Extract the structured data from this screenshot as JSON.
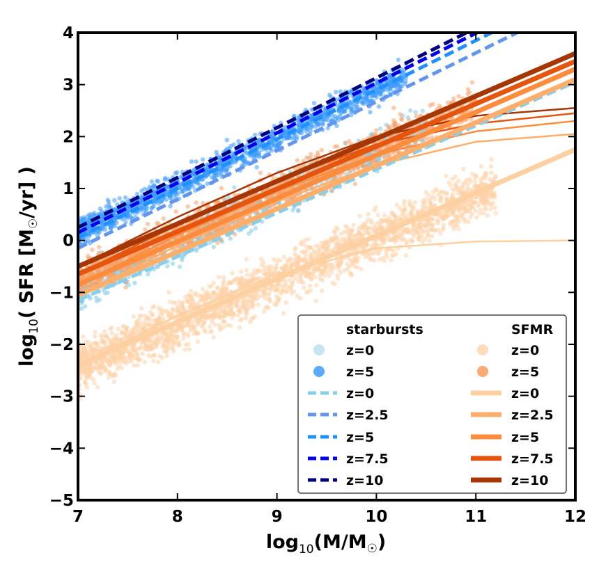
{
  "chart_data": {
    "type": "scatter",
    "xlabel_main": "log",
    "xlabel_sub": "10",
    "xlabel_rest": "(M/M",
    "xlabel_sun": "☉",
    "xlabel_close": ")",
    "ylabel_main": "log",
    "ylabel_sub": "10",
    "ylabel_rest": "( SFR [M",
    "ylabel_sun": "☉",
    "ylabel_close": "/yr] )",
    "xlim": [
      7,
      12
    ],
    "ylim": [
      -5,
      4
    ],
    "xticks": [
      "7",
      "8",
      "9",
      "10",
      "11",
      "12"
    ],
    "yticks": [
      "−5",
      "−4",
      "−3",
      "−2",
      "−1",
      "0",
      "1",
      "2",
      "3",
      "4"
    ],
    "legend": {
      "location": "lower-right",
      "col1_title": "starbursts",
      "col2_title": "SFMR",
      "col1_labels": [
        "z=0",
        "z=5",
        "z=0",
        "z=2.5",
        "z=5",
        "z=7.5",
        "z=10"
      ],
      "col2_labels": [
        "z=0",
        "z=5",
        "z=0",
        "z=2.5",
        "z=5",
        "z=7.5",
        "z=10"
      ]
    },
    "scatter_series": [
      {
        "name": "starbursts z=0",
        "color": "#7ec8e8",
        "relation": {
          "slope": 0.9,
          "intercept_at_7": -0.95,
          "scatter": 0.35
        },
        "x_range": [
          7,
          10.5
        ]
      },
      {
        "name": "starbursts z=5",
        "color": "#3d9bff",
        "relation": {
          "slope": 0.92,
          "intercept_at_7": 0.15,
          "scatter": 0.25
        },
        "x_range": [
          7,
          10.3
        ]
      },
      {
        "name": "SFMR z=0",
        "color": "#fdd2a8",
        "relation": {
          "slope": 0.82,
          "intercept_at_7": -2.4,
          "scatter": 0.45
        },
        "x_range": [
          7,
          11.2
        ]
      },
      {
        "name": "SFMR z=5",
        "color": "#fba066",
        "relation": {
          "slope": 0.85,
          "intercept_at_7": -0.75,
          "scatter": 0.35
        },
        "x_range": [
          7,
          11
        ]
      }
    ],
    "line_series": [
      {
        "group": "starbursts",
        "name": "z=0",
        "style": "dashed",
        "color": "#87ceeb",
        "x": [
          7,
          12
        ],
        "y": [
          -1.15,
          3.05
        ]
      },
      {
        "group": "starbursts",
        "name": "z=2.5",
        "style": "dashed",
        "color": "#6495ed",
        "x": [
          7,
          12
        ],
        "y": [
          -0.15,
          4.55
        ]
      },
      {
        "group": "starbursts",
        "name": "z=5",
        "style": "dashed",
        "color": "#1e90ff",
        "x": [
          7,
          12
        ],
        "y": [
          0.05,
          4.8
        ]
      },
      {
        "group": "starbursts",
        "name": "z=7.5",
        "style": "dashed",
        "color": "#0000ee",
        "x": [
          7,
          12
        ],
        "y": [
          0.15,
          4.95
        ]
      },
      {
        "group": "starbursts",
        "name": "z=10",
        "style": "dashed",
        "color": "#000080",
        "x": [
          7,
          12
        ],
        "y": [
          0.25,
          5.05
        ]
      },
      {
        "group": "SFMR",
        "name": "z=0",
        "style": "solid",
        "color": "#fdd0a2",
        "x": [
          7,
          12
        ],
        "y": [
          -2.4,
          1.75
        ]
      },
      {
        "group": "SFMR",
        "name": "z=2.5",
        "style": "solid",
        "color": "#fdae6b",
        "x": [
          7,
          12
        ],
        "y": [
          -1.05,
          3.1
        ]
      },
      {
        "group": "SFMR",
        "name": "z=5",
        "style": "solid",
        "color": "#fd8d3c",
        "x": [
          7,
          12
        ],
        "y": [
          -0.85,
          3.3
        ]
      },
      {
        "group": "SFMR",
        "name": "z=7.5",
        "style": "solid",
        "color": "#e6550d",
        "x": [
          7,
          12
        ],
        "y": [
          -0.65,
          3.45
        ]
      },
      {
        "group": "SFMR",
        "name": "z=10",
        "style": "solid",
        "color": "#a63603",
        "x": [
          7,
          12
        ],
        "y": [
          -0.5,
          3.6
        ]
      }
    ],
    "curve_series": [
      {
        "color": "#fdd0a2",
        "x": [
          7,
          8,
          9,
          10,
          11,
          12
        ],
        "y": [
          -2.4,
          -1.45,
          -0.65,
          -0.15,
          -0.02,
          0.0
        ]
      },
      {
        "color": "#fdae6b",
        "x": [
          7,
          8,
          9,
          10,
          11,
          12
        ],
        "y": [
          -1.05,
          -0.1,
          0.75,
          1.45,
          1.9,
          2.05
        ]
      },
      {
        "color": "#fd8d3c",
        "x": [
          7,
          8,
          9,
          10,
          11,
          12
        ],
        "y": [
          -0.85,
          0.1,
          0.95,
          1.65,
          2.1,
          2.3
        ]
      },
      {
        "color": "#e6550d",
        "x": [
          7,
          8,
          9,
          10,
          11,
          12
        ],
        "y": [
          -0.65,
          0.3,
          1.15,
          1.85,
          2.25,
          2.45
        ]
      },
      {
        "color": "#a63603",
        "x": [
          7,
          8,
          9,
          10,
          11,
          12
        ],
        "y": [
          -0.5,
          0.45,
          1.3,
          2.0,
          2.4,
          2.55
        ]
      }
    ]
  }
}
